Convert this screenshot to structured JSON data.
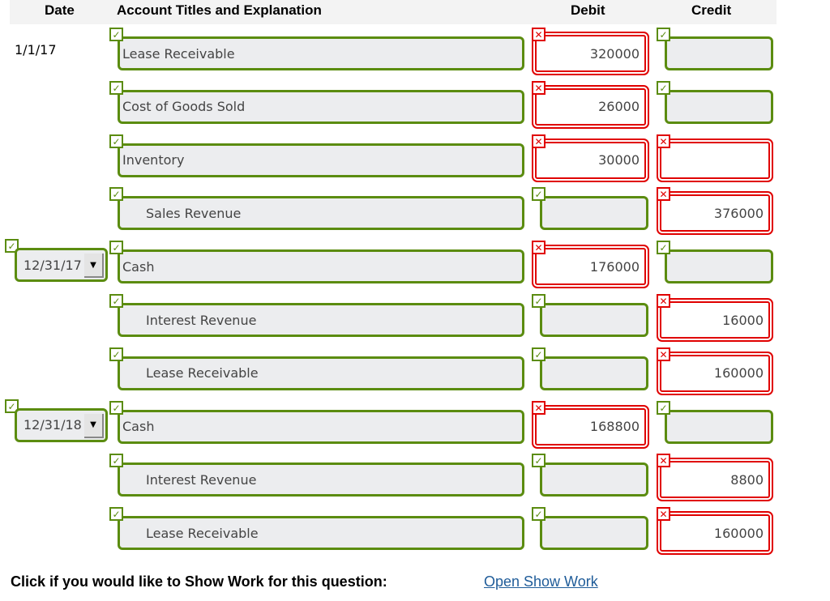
{
  "header": {
    "date": "Date",
    "account": "Account Titles and Explanation",
    "debit": "Debit",
    "credit": "Credit"
  },
  "icons": {
    "correct": "check-icon",
    "incorrect": "x-icon",
    "dropdown": "caret-down-icon"
  },
  "colors": {
    "correct": "#5b8c10",
    "incorrect": "#e00000",
    "link": "#1f5c99"
  },
  "entries": [
    {
      "date": "1/1/17",
      "date_type": "text",
      "account": "Lease Receivable",
      "indent": false,
      "debit": "320000",
      "debit_status": "incorrect",
      "credit": "",
      "credit_status": "correct"
    },
    {
      "date": "",
      "account": "Cost of Goods Sold",
      "indent": false,
      "debit": "26000",
      "debit_status": "incorrect",
      "credit": "",
      "credit_status": "correct"
    },
    {
      "date": "",
      "account": "Inventory",
      "indent": false,
      "debit": "30000",
      "debit_status": "incorrect",
      "credit": "",
      "credit_status": "incorrect"
    },
    {
      "date": "",
      "account": "Sales Revenue",
      "indent": true,
      "debit": "",
      "debit_status": "correct",
      "credit": "376000",
      "credit_status": "incorrect"
    },
    {
      "date": "12/31/17",
      "date_type": "select",
      "account": "Cash",
      "indent": false,
      "debit": "176000",
      "debit_status": "incorrect",
      "credit": "",
      "credit_status": "correct"
    },
    {
      "date": "",
      "account": "Interest Revenue",
      "indent": true,
      "debit": "",
      "debit_status": "correct",
      "credit": "16000",
      "credit_status": "incorrect"
    },
    {
      "date": "",
      "account": "Lease Receivable",
      "indent": true,
      "debit": "",
      "debit_status": "correct",
      "credit": "160000",
      "credit_status": "incorrect"
    },
    {
      "date": "12/31/18",
      "date_type": "select",
      "account": "Cash",
      "indent": false,
      "debit": "168800",
      "debit_status": "incorrect",
      "credit": "",
      "credit_status": "correct"
    },
    {
      "date": "",
      "account": "Interest Revenue",
      "indent": true,
      "debit": "",
      "debit_status": "correct",
      "credit": "8800",
      "credit_status": "incorrect"
    },
    {
      "date": "",
      "account": "Lease Receivable",
      "indent": true,
      "debit": "",
      "debit_status": "correct",
      "credit": "160000",
      "credit_status": "incorrect"
    }
  ],
  "footer": {
    "prompt": "Click if you would like to Show Work for this question:",
    "link": "Open Show Work"
  }
}
